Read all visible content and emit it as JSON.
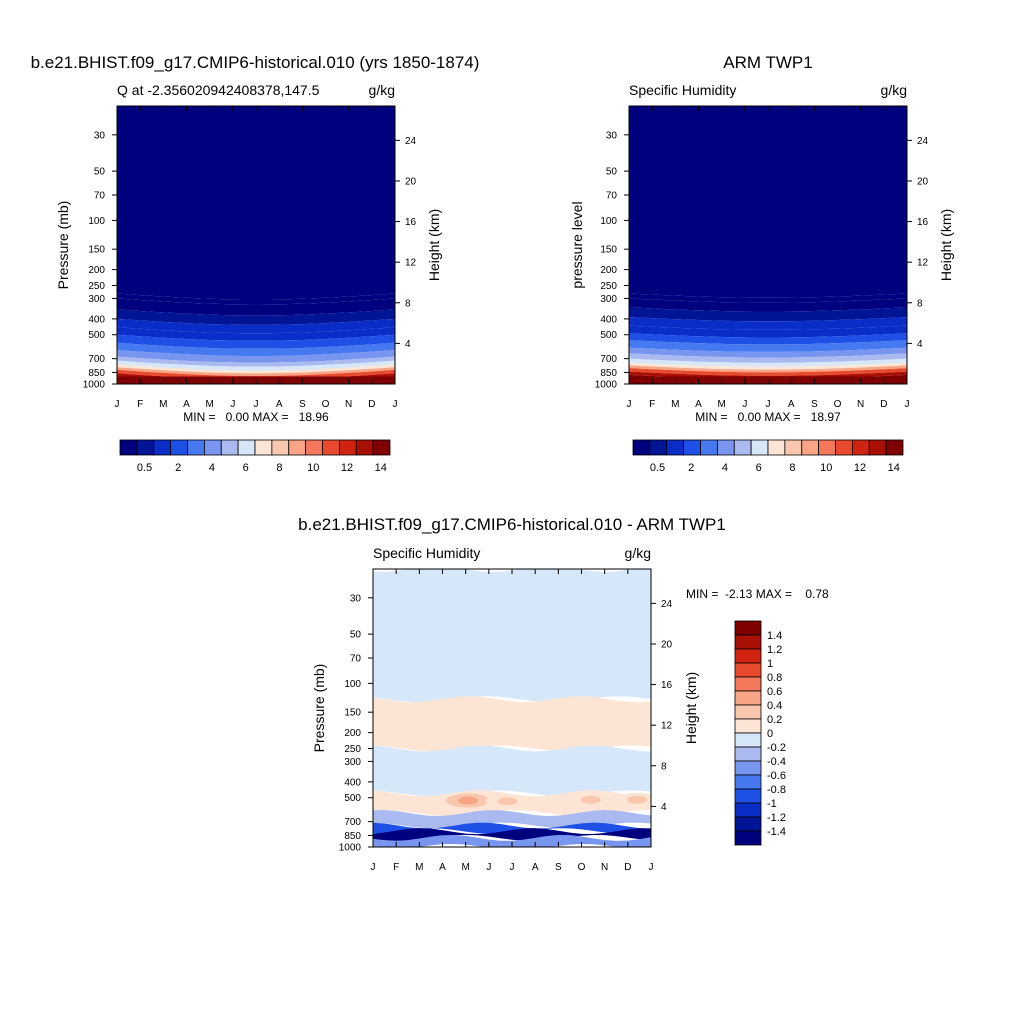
{
  "colors": {
    "main_scale": [
      "#00007f",
      "#001496",
      "#0a2dc8",
      "#1e50e6",
      "#4678f0",
      "#7896f0",
      "#aab9f0",
      "#d6e7fa",
      "#fde5d6",
      "#f9c7ae",
      "#f7a586",
      "#f3775a",
      "#e84a2e",
      "#d02410",
      "#a80f05",
      "#7f0000"
    ],
    "diff_scale": [
      "#00007f",
      "#001496",
      "#0a2dc8",
      "#1e50e6",
      "#4678f0",
      "#7896f0",
      "#aab9f0",
      "#d6e7fa",
      "#fde5d6",
      "#f9c7ae",
      "#f7a586",
      "#f3775a",
      "#e84a2e",
      "#d02410",
      "#a80f05",
      "#7f0000"
    ]
  },
  "chart_data": [
    {
      "type": "heatmap",
      "title": "b.e21.BHIST.f09_g17.CMIP6-historical.010 (yrs 1850-1874)",
      "subtitle_left": "Q at -2.356020942408378,147.5",
      "subtitle_right": "g/kg",
      "ylabel": "Pressure (mb)",
      "ylabel_right": "Height (km)",
      "x_ticks": [
        "J",
        "F",
        "M",
        "A",
        "M",
        "J",
        "J",
        "A",
        "S",
        "O",
        "N",
        "D",
        "J"
      ],
      "y_ticks": [
        "30",
        "50",
        "70",
        "100",
        "150",
        "200",
        "250",
        "300",
        "400",
        "500",
        "700",
        "850",
        "1000"
      ],
      "y_ticks_right": [
        "24",
        "20",
        "16",
        "12",
        "8",
        "4"
      ],
      "ylim": [
        1000,
        20
      ],
      "y_scale": "log",
      "stats": "MIN =   0.00 MAX =   18.96",
      "colorbar_ticks": [
        "0.5",
        "2",
        "4",
        "6",
        "8",
        "10",
        "12",
        "14"
      ],
      "profile": [
        [
          20,
          0.1
        ],
        [
          280,
          0.1
        ],
        [
          300,
          0.5
        ],
        [
          350,
          1
        ],
        [
          400,
          1.5
        ],
        [
          450,
          2
        ],
        [
          500,
          3
        ],
        [
          560,
          4
        ],
        [
          620,
          5
        ],
        [
          680,
          6
        ],
        [
          720,
          7
        ],
        [
          760,
          8
        ],
        [
          790,
          10
        ],
        [
          820,
          12
        ],
        [
          860,
          14
        ],
        [
          900,
          15
        ],
        [
          1000,
          16
        ]
      ],
      "surface_contrast": "strong"
    },
    {
      "type": "heatmap",
      "title": "ARM TWP1",
      "subtitle_left": "Specific Humidity",
      "subtitle_right": "g/kg",
      "ylabel": "pressure level",
      "ylabel_right": "Height (km)",
      "x_ticks": [
        "J",
        "F",
        "M",
        "A",
        "M",
        "J",
        "J",
        "A",
        "S",
        "O",
        "N",
        "D",
        "J"
      ],
      "y_ticks": [
        "30",
        "50",
        "70",
        "100",
        "150",
        "200",
        "250",
        "300",
        "400",
        "500",
        "700",
        "850",
        "1000"
      ],
      "y_ticks_right": [
        "24",
        "20",
        "16",
        "12",
        "8",
        "4"
      ],
      "ylim": [
        1000,
        20
      ],
      "y_scale": "log",
      "stats": "MIN =   0.00 MAX =   18.97",
      "colorbar_ticks": [
        "0.5",
        "2",
        "4",
        "6",
        "8",
        "10",
        "12",
        "14"
      ],
      "profile": [
        [
          20,
          0.1
        ],
        [
          280,
          0.1
        ],
        [
          300,
          0.5
        ],
        [
          340,
          1
        ],
        [
          390,
          1.5
        ],
        [
          440,
          2
        ],
        [
          490,
          3
        ],
        [
          540,
          4
        ],
        [
          600,
          5
        ],
        [
          650,
          6
        ],
        [
          700,
          7
        ],
        [
          740,
          8
        ],
        [
          770,
          10
        ],
        [
          800,
          12
        ],
        [
          840,
          14
        ],
        [
          880,
          15
        ],
        [
          1000,
          16
        ]
      ],
      "surface_contrast": "soft"
    },
    {
      "type": "heatmap",
      "title": "b.e21.BHIST.f09_g17.CMIP6-historical.010 - ARM TWP1",
      "subtitle_left": "Specific Humidity",
      "subtitle_right": "g/kg",
      "ylabel": "Pressure (mb)",
      "ylabel_right": "Height (km)",
      "x_ticks": [
        "J",
        "F",
        "M",
        "A",
        "M",
        "J",
        "J",
        "A",
        "S",
        "O",
        "N",
        "D",
        "J"
      ],
      "y_ticks": [
        "30",
        "50",
        "70",
        "100",
        "150",
        "200",
        "250",
        "300",
        "400",
        "500",
        "700",
        "850",
        "1000"
      ],
      "y_ticks_right": [
        "24",
        "20",
        "16",
        "12",
        "8",
        "4"
      ],
      "ylim": [
        1000,
        20
      ],
      "y_scale": "log",
      "stats": "MIN =  -2.13 MAX =    0.78",
      "colorbar_ticks": [
        "1.4",
        "1.2",
        "1",
        "0.8",
        "0.6",
        "0.4",
        "0.2",
        "0",
        "-0.2",
        "-0.4",
        "-0.6",
        "-0.8",
        "-1",
        "-1.2",
        "-1.4"
      ],
      "bands": [
        {
          "p_top": 20,
          "p_bot": 125,
          "value": -0.1
        },
        {
          "p_top": 125,
          "p_bot": 250,
          "value": 0.1
        },
        {
          "p_top": 250,
          "p_bot": 470,
          "value": -0.1
        },
        {
          "p_top": 470,
          "p_bot": 620,
          "value": 0.2
        },
        {
          "p_top": 620,
          "p_bot": 740,
          "value": -0.3
        },
        {
          "p_top": 740,
          "p_bot": 800,
          "value": -0.8
        },
        {
          "p_top": 800,
          "p_bot": 880,
          "value": -1.5
        },
        {
          "p_top": 880,
          "p_bot": 1000,
          "value": -0.5
        }
      ],
      "anomalies": [
        {
          "month": 4.1,
          "p": 520,
          "value": 0.5
        },
        {
          "month": 5.8,
          "p": 525,
          "value": 0.4
        },
        {
          "month": 9.4,
          "p": 515,
          "value": 0.4
        },
        {
          "month": 11.4,
          "p": 515,
          "value": 0.4
        }
      ]
    }
  ]
}
